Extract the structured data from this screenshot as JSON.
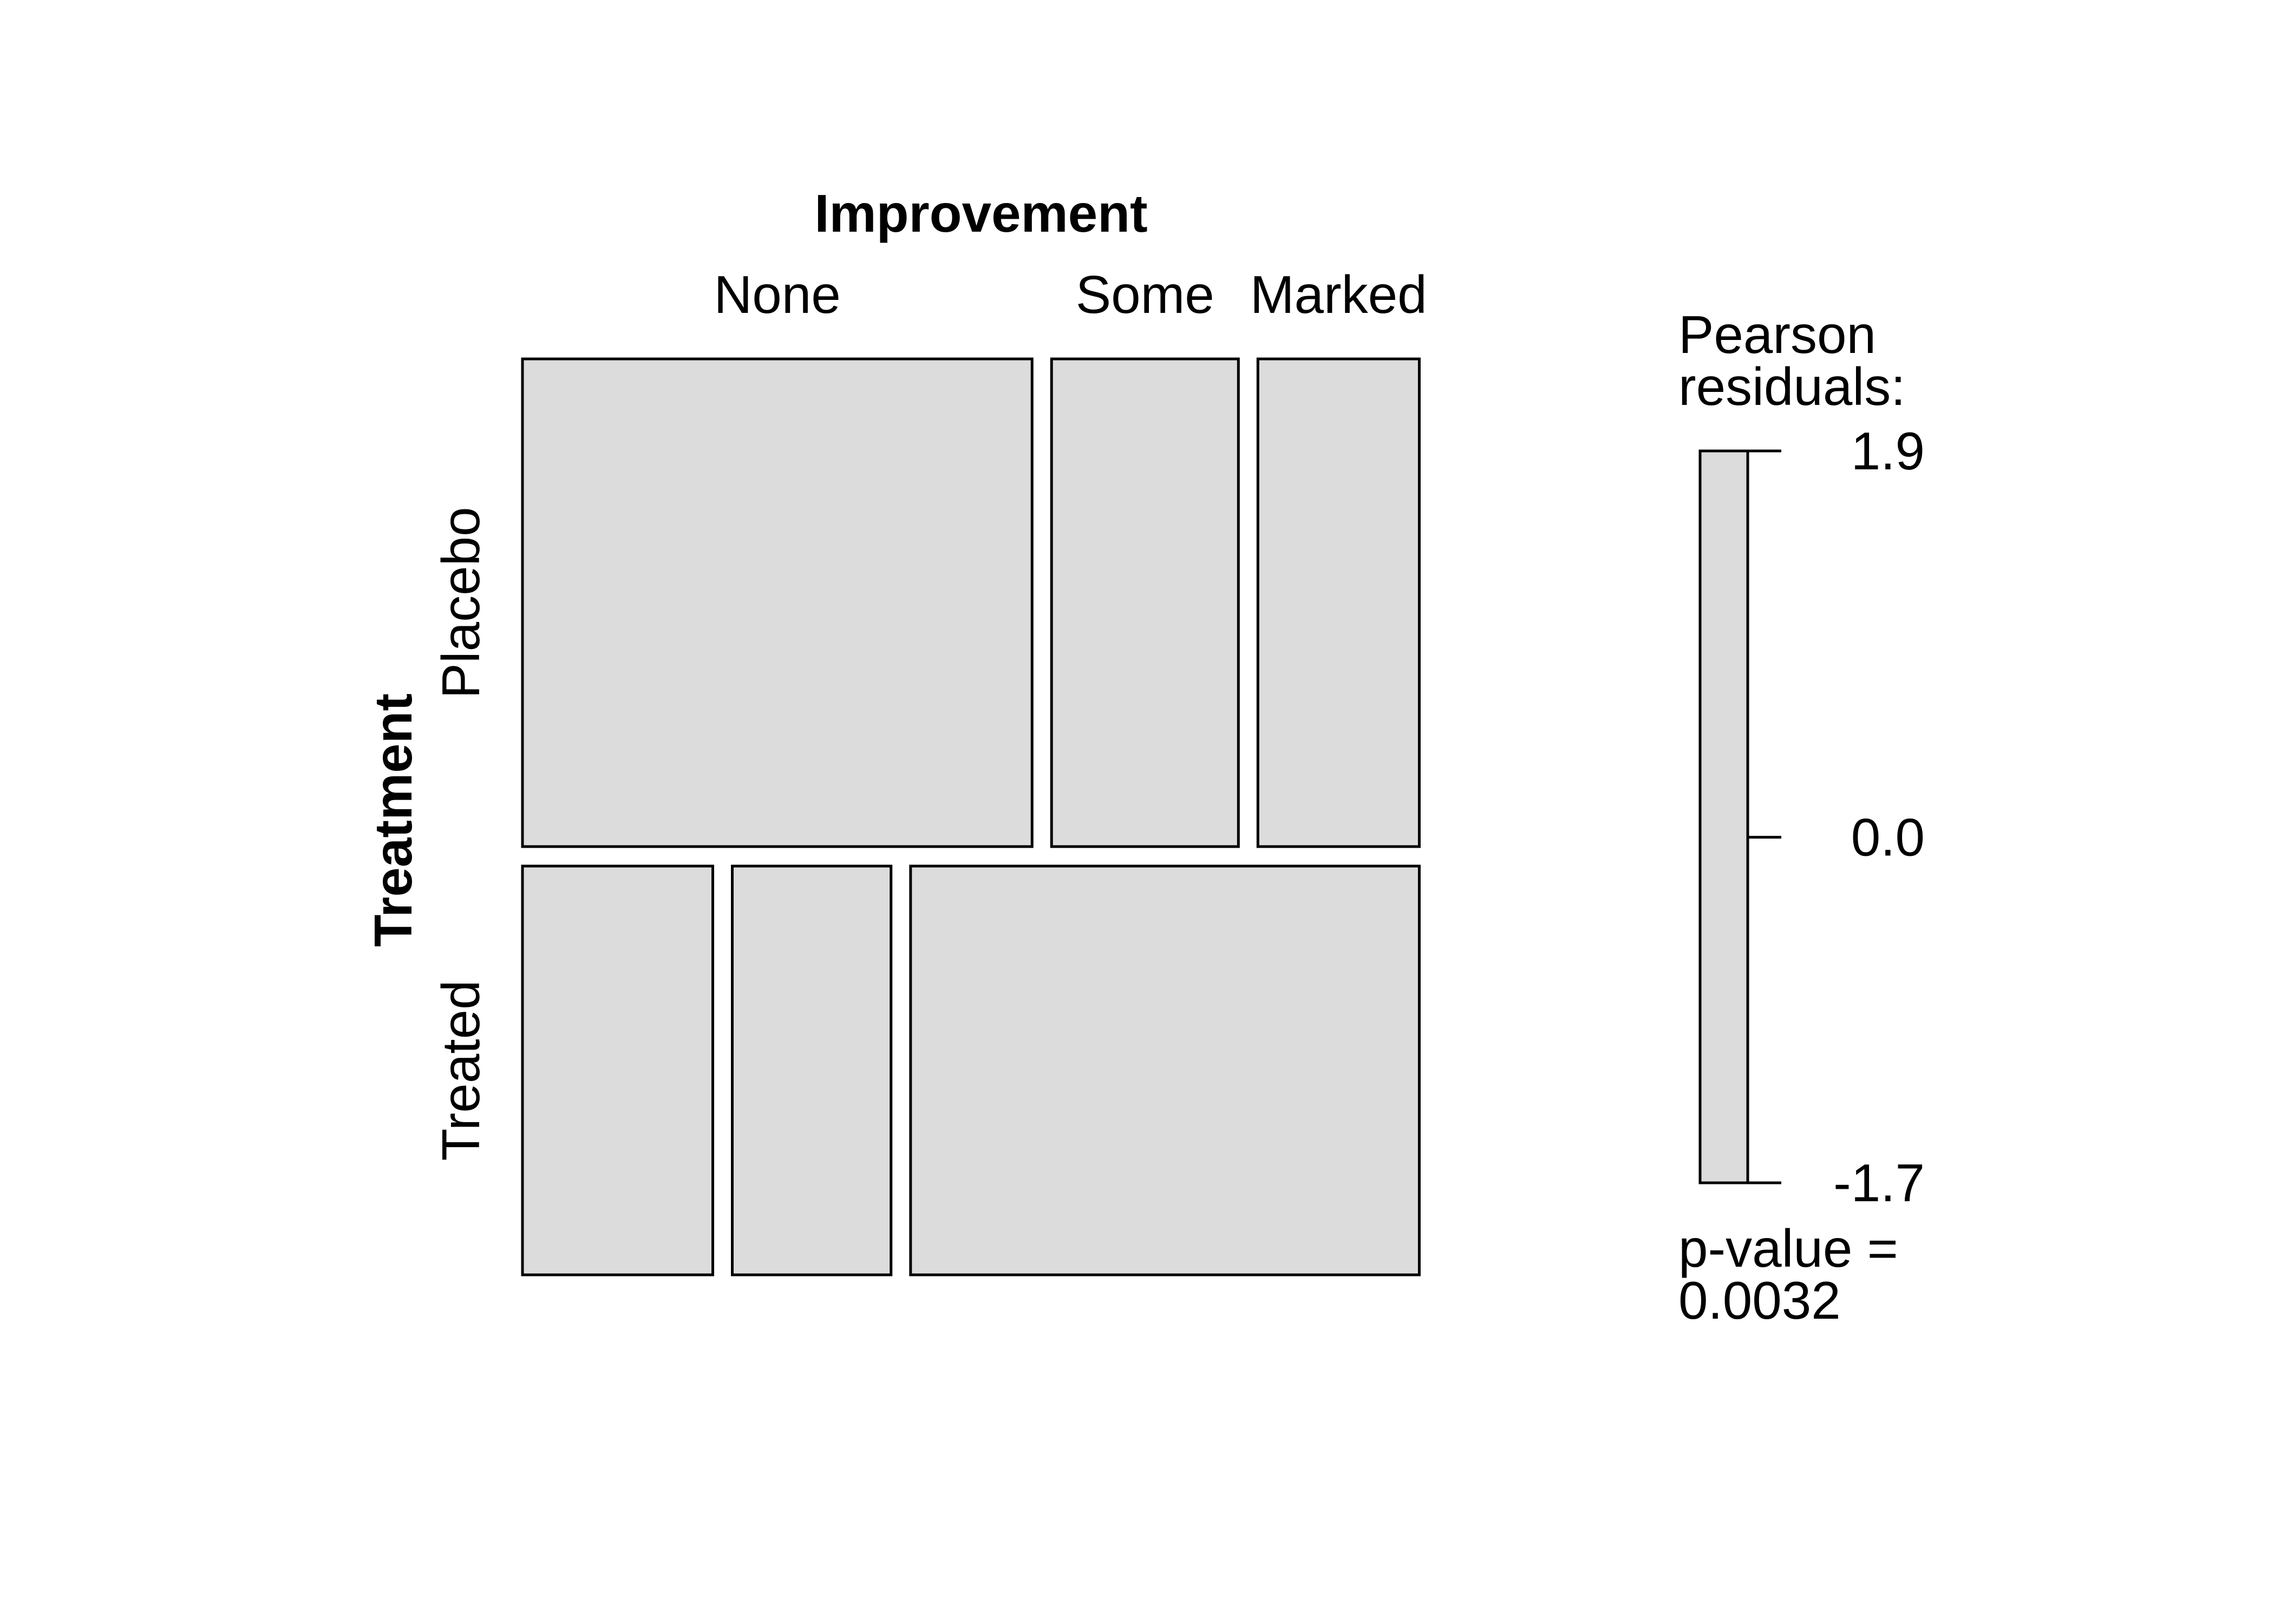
{
  "chart_data": {
    "type": "mosaic",
    "row_variable": "Treatment",
    "column_variable": "Improvement",
    "rows": [
      "Placebo",
      "Treated"
    ],
    "row_shares": [
      0.544,
      0.456
    ],
    "columns": [
      "None",
      "Some",
      "Marked"
    ],
    "column_shares_by_row": [
      [
        0.581,
        0.213,
        0.184
      ],
      [
        0.217,
        0.181,
        0.58
      ]
    ],
    "fill_color": "#dcdcdc",
    "legend": {
      "title_lines": [
        "Pearson",
        "residuals:"
      ],
      "ticks": [
        1.9,
        0.0,
        -1.7
      ],
      "tick_labels": [
        "1.9",
        "0.0",
        "-1.7"
      ],
      "range": [
        -1.7,
        1.9
      ]
    },
    "p_value_lines": [
      "p-value =",
      "0.0032"
    ]
  }
}
